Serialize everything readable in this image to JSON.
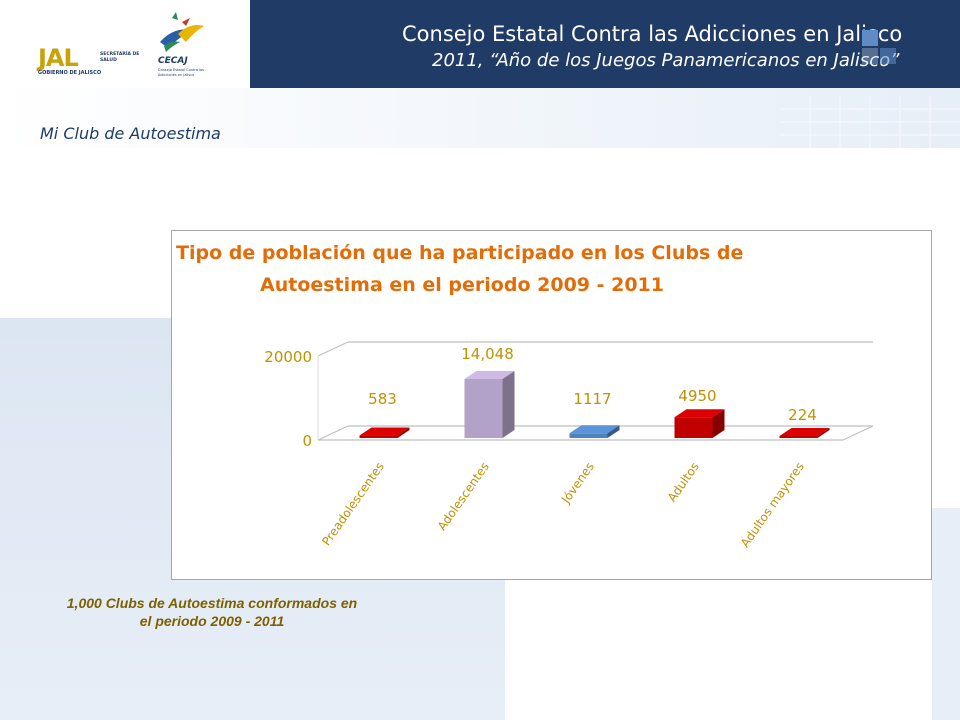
{
  "header": {
    "title": "Consejo Estatal Contra las Adicciones en Jalisco",
    "subtitle": "2011, “Año de los Juegos Panamericanos en Jalisco”",
    "logo_jal": {
      "word": "JAL",
      "secretaria": "SECRETARÍA DE SALUD",
      "gobierno": "GOBIERNO DE JALISCO"
    },
    "logo_cecaj": {
      "word": "CECAJ",
      "sub": "Consejo Estatal Contra las Adicciones en Jalisco"
    }
  },
  "section": {
    "title": "Mi Club de Autoestima"
  },
  "chart_title": {
    "line1": "Tipo de población que ha participado en los Clubs de",
    "line2": "Autoestima  en el periodo 2009 - 2011"
  },
  "chart_data": {
    "type": "bar",
    "title": "Tipo de población que ha participado en los Clubs de Autoestima  en el periodo 2009 - 2011",
    "categories": [
      "Preadolescentes",
      "Adolescentes",
      "Jóvenes",
      "Adultos",
      "Adultos mayores"
    ],
    "values": [
      583,
      14048,
      1117,
      4950,
      224
    ],
    "data_labels": [
      "583",
      "14,048",
      "1117",
      "4950",
      "224"
    ],
    "colors": [
      "#c00000",
      "#b3a2c7",
      "#4f81bd",
      "#c00000",
      "#c00000"
    ],
    "yticks": [
      0,
      20000
    ],
    "ylim": [
      0,
      20000
    ],
    "grid": true,
    "three_d": true,
    "xlabel": "",
    "ylabel": ""
  },
  "caption": {
    "text": "1,000 Clubs de Autoestima conformados en el periodo 2009 - 2011"
  },
  "colors": {
    "header_bg": "#1f3b66",
    "title_orange": "#e36c09",
    "label_gold": "#c09100",
    "caption": "#7f6000"
  }
}
